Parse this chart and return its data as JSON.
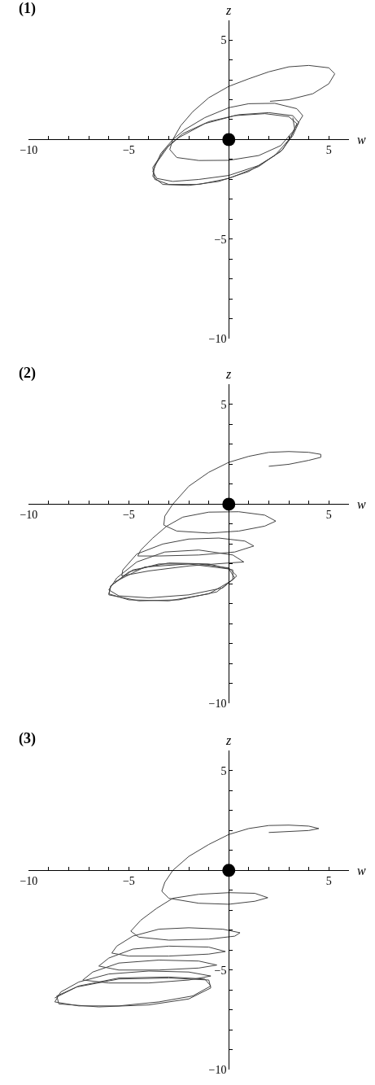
{
  "chart_data": [
    {
      "type": "line",
      "title": "(1)",
      "xlabel": "w",
      "ylabel": "z",
      "xlim": [
        -10,
        6
      ],
      "ylim": [
        -10,
        6
      ],
      "xticks": [
        -10,
        {
          "value": -9,
          "label": null
        },
        {
          "value": -8,
          "label": null
        },
        {
          "value": -7,
          "label": null
        },
        {
          "value": -6,
          "label": null
        },
        -5,
        {
          "value": -4,
          "label": null
        },
        {
          "value": -3,
          "label": null
        },
        {
          "value": -2,
          "label": null
        },
        {
          "value": -1,
          "label": null
        },
        {
          "value": 1,
          "label": null
        },
        {
          "value": 2,
          "label": null
        },
        {
          "value": 3,
          "label": null
        },
        {
          "value": 4,
          "label": null
        },
        5
      ],
      "yticks": [
        -10,
        {
          "value": -9,
          "label": null
        },
        {
          "value": -8,
          "label": null
        },
        {
          "value": -7,
          "label": null
        },
        {
          "value": -6,
          "label": null
        },
        -5,
        {
          "value": -4,
          "label": null
        },
        {
          "value": -3,
          "label": null
        },
        {
          "value": -2,
          "label": null
        },
        {
          "value": -1,
          "label": null
        },
        {
          "value": 1,
          "label": null
        },
        {
          "value": 2,
          "label": null
        },
        {
          "value": 3,
          "label": null
        },
        {
          "value": 4,
          "label": null
        },
        5
      ],
      "series": [
        {
          "color": "#444444",
          "x": [
            2.06,
            3.0,
            4.2,
            5.0,
            5.3,
            5.0,
            4.0,
            3.0,
            2.0,
            1.0,
            0,
            -1.0,
            -1.8,
            -2.4,
            -2.8,
            -2.95,
            -2.6,
            -1.5,
            0,
            1.5,
            2.6,
            3.2,
            3.7,
            3.4,
            2.3,
            1.0,
            0,
            -1.2,
            -2.2,
            -2.8,
            -3.4,
            -3.8,
            -3.6,
            -2.8,
            -1.5,
            0,
            1.5,
            2.6,
            3.2,
            3.5,
            3.2,
            2.0,
            0.5,
            -1.0,
            -2.3,
            -3.0,
            -3.7,
            -3.8,
            -3.3,
            -2.0,
            -0.5,
            1.0,
            2.3,
            3.1,
            3.4,
            3.0,
            1.8,
            0.3,
            -1.2,
            -2.5,
            -3.2,
            -3.8,
            -3.7,
            -3.0,
            -1.5,
            0,
            1.5,
            2.7,
            3.3,
            3.2
          ],
          "values": [
            1.92,
            2.0,
            2.3,
            2.8,
            3.3,
            3.6,
            3.72,
            3.65,
            3.4,
            3.05,
            2.67,
            2.1,
            1.4,
            0.7,
            0,
            -0.5,
            -0.9,
            -1.05,
            -1.04,
            -0.8,
            -0.3,
            0.4,
            1.2,
            1.55,
            1.82,
            1.8,
            1.6,
            1.1,
            0.5,
            0,
            -0.7,
            -1.6,
            -1.95,
            -2.1,
            -2.0,
            -1.8,
            -1.3,
            -0.6,
            0.2,
            0.85,
            1.2,
            1.35,
            1.25,
            0.9,
            0.3,
            -0.3,
            -1.3,
            -1.85,
            -2.25,
            -2.3,
            -2.1,
            -1.6,
            -0.8,
            0.1,
            0.8,
            1.15,
            1.3,
            1.2,
            0.8,
            0.1,
            -0.5,
            -1.4,
            -2.0,
            -2.25,
            -2.25,
            -1.95,
            -1.35,
            -0.5,
            0.5,
            1.1
          ]
        },
        {
          "type": "scatter",
          "color": "#000000",
          "marker": "circle",
          "x": [
            0
          ],
          "values": [
            0
          ]
        }
      ]
    },
    {
      "type": "line",
      "title": "(2)",
      "xlabel": "w",
      "ylabel": "z",
      "xlim": [
        -10,
        6
      ],
      "ylim": [
        -10,
        6
      ],
      "xticks": [
        -10,
        {
          "value": -9,
          "label": null
        },
        {
          "value": -8,
          "label": null
        },
        {
          "value": -7,
          "label": null
        },
        {
          "value": -6,
          "label": null
        },
        -5,
        {
          "value": -4,
          "label": null
        },
        {
          "value": -3,
          "label": null
        },
        {
          "value": -2,
          "label": null
        },
        {
          "value": -1,
          "label": null
        },
        {
          "value": 1,
          "label": null
        },
        {
          "value": 2,
          "label": null
        },
        {
          "value": 3,
          "label": null
        },
        {
          "value": 4,
          "label": null
        },
        5
      ],
      "yticks": [
        -10,
        {
          "value": -9,
          "label": null
        },
        {
          "value": -8,
          "label": null
        },
        {
          "value": -7,
          "label": null
        },
        {
          "value": -6,
          "label": null
        },
        {
          "value": -5,
          "label": null
        },
        {
          "value": -4,
          "label": null
        },
        {
          "value": -3,
          "label": null
        },
        {
          "value": -2,
          "label": null
        },
        {
          "value": -1,
          "label": null
        },
        {
          "value": 1,
          "label": null
        },
        {
          "value": 2,
          "label": null
        },
        {
          "value": 3,
          "label": null
        },
        {
          "value": 4,
          "label": null
        },
        5
      ],
      "series": [
        {
          "color": "#444444",
          "x": [
            2.0,
            3.0,
            4.0,
            4.6,
            4.6,
            4.0,
            3.0,
            2.0,
            1.0,
            0,
            -1.0,
            -2.0,
            -2.8,
            -3.2,
            -3.25,
            -2.6,
            -1.0,
            0.5,
            1.8,
            2.35,
            1.8,
            0.5,
            -1.0,
            -2.3,
            -3.1,
            -3.8,
            -4.4,
            -4.55,
            -3.5,
            -1.5,
            0.3,
            1.25,
            0.8,
            -0.5,
            -2.0,
            -3.3,
            -4.6,
            -5.3,
            -5.35,
            -4.0,
            -2.0,
            0,
            0.75,
            0.2,
            -1.5,
            -3.2,
            -4.6,
            -5.6,
            -6.0,
            -5.5,
            -4.0,
            -2.0,
            -0.3,
            0.4,
            0,
            -1.5,
            -3.5,
            -5.0,
            -5.9,
            -6.0,
            -5.0,
            -3.0,
            -1.0,
            0.2,
            0.2,
            -1.0,
            -3.0,
            -4.8,
            -5.9,
            -6.0,
            -4.5,
            -2.5,
            -0.6,
            0.3,
            0,
            -2.0,
            -4.2,
            -5.7
          ],
          "values": [
            1.9,
            2.0,
            2.2,
            2.35,
            2.5,
            2.6,
            2.64,
            2.6,
            2.4,
            2.1,
            1.6,
            0.9,
            0,
            -0.6,
            -1.05,
            -1.35,
            -1.45,
            -1.35,
            -1.1,
            -0.85,
            -0.55,
            -0.38,
            -0.4,
            -0.65,
            -1.1,
            -1.7,
            -2.3,
            -2.6,
            -2.6,
            -2.55,
            -2.4,
            -2.1,
            -1.85,
            -1.7,
            -1.75,
            -2.0,
            -2.5,
            -3.3,
            -3.6,
            -3.35,
            -3.1,
            -2.95,
            -2.9,
            -2.55,
            -2.3,
            -2.4,
            -2.9,
            -3.7,
            -4.3,
            -4.6,
            -4.7,
            -4.55,
            -4.2,
            -3.6,
            -3.2,
            -3.0,
            -3.0,
            -3.4,
            -4.1,
            -4.5,
            -4.8,
            -4.85,
            -4.5,
            -3.8,
            -3.3,
            -3.0,
            -2.95,
            -3.3,
            -4.1,
            -4.55,
            -4.85,
            -4.8,
            -4.4,
            -3.7,
            -3.25,
            -3.0,
            -3.15,
            -3.9
          ]
        },
        {
          "type": "scatter",
          "color": "#000000",
          "marker": "circle",
          "x": [
            0
          ],
          "values": [
            0
          ]
        }
      ]
    },
    {
      "type": "line",
      "title": "(3)",
      "xlabel": "w",
      "ylabel": "z",
      "xlim": [
        -10,
        6
      ],
      "ylim": [
        -10,
        6
      ],
      "xticks": [
        -10,
        {
          "value": -9,
          "label": null
        },
        {
          "value": -8,
          "label": null
        },
        {
          "value": -7,
          "label": null
        },
        {
          "value": -6,
          "label": null
        },
        -5,
        {
          "value": -4,
          "label": null
        },
        {
          "value": -3,
          "label": null
        },
        {
          "value": -2,
          "label": null
        },
        {
          "value": -1,
          "label": null
        },
        {
          "value": 1,
          "label": null
        },
        {
          "value": 2,
          "label": null
        },
        {
          "value": 3,
          "label": null
        },
        {
          "value": 4,
          "label": null
        },
        5
      ],
      "yticks": [
        -10,
        {
          "value": -9,
          "label": null
        },
        {
          "value": -8,
          "label": null
        },
        {
          "value": -7,
          "label": null
        },
        {
          "value": -6,
          "label": null
        },
        -5,
        {
          "value": -4,
          "label": null
        },
        {
          "value": -3,
          "label": null
        },
        {
          "value": -2,
          "label": null
        },
        {
          "value": -1,
          "label": null
        },
        {
          "value": 1,
          "label": null
        },
        {
          "value": 2,
          "label": null
        },
        {
          "value": 3,
          "label": null
        },
        {
          "value": 4,
          "label": null
        },
        5
      ],
      "series": [
        {
          "color": "#444444",
          "x": [
            2.0,
            3.0,
            4.0,
            4.5,
            4.0,
            3.0,
            2.0,
            1.0,
            0,
            -1.0,
            -2.0,
            -2.8,
            -3.2,
            -3.35,
            -3.0,
            -1.5,
            0,
            1.3,
            1.95,
            1.3,
            0,
            -1.5,
            -2.8,
            -3.6,
            -4.4,
            -4.9,
            -4.5,
            -3.0,
            -1.0,
            0.3,
            0.56,
            -0.3,
            -2.0,
            -3.5,
            -4.8,
            -5.6,
            -5.85,
            -5.0,
            -3.0,
            -1.0,
            -0.17,
            -1.0,
            -3.0,
            -4.8,
            -6.0,
            -6.5,
            -5.5,
            -3.5,
            -1.5,
            -0.6,
            -1.5,
            -3.5,
            -5.5,
            -6.8,
            -7.3,
            -6.0,
            -4.0,
            -2.0,
            -0.9,
            -2.0,
            -4.0,
            -6.0,
            -7.5,
            -8.4,
            -8.7,
            -7.5,
            -5.5,
            -3.5,
            -1.8,
            -0.9,
            -1.2,
            -3.0,
            -5.5,
            -7.5,
            -8.6,
            -8.5,
            -6.5,
            -4.0,
            -2.0,
            -0.9,
            -1.0,
            -3.0,
            -5.5,
            -7.6,
            -8.7
          ],
          "values": [
            1.9,
            1.95,
            2.0,
            2.1,
            2.22,
            2.27,
            2.25,
            2.1,
            1.8,
            1.3,
            0.7,
            0,
            -0.6,
            -1.05,
            -1.4,
            -1.65,
            -1.7,
            -1.55,
            -1.37,
            -1.15,
            -1.12,
            -1.2,
            -1.4,
            -1.9,
            -2.5,
            -3.05,
            -3.35,
            -3.5,
            -3.45,
            -3.3,
            -3.13,
            -2.95,
            -2.88,
            -2.95,
            -3.3,
            -3.8,
            -4.15,
            -4.3,
            -4.3,
            -4.2,
            -4.07,
            -3.85,
            -3.8,
            -3.95,
            -4.4,
            -4.8,
            -5.0,
            -5.0,
            -4.9,
            -4.75,
            -4.55,
            -4.5,
            -4.65,
            -5.1,
            -5.5,
            -5.65,
            -5.65,
            -5.5,
            -5.3,
            -5.1,
            -5.05,
            -5.2,
            -5.6,
            -6.1,
            -6.6,
            -6.8,
            -6.8,
            -6.6,
            -6.3,
            -5.8,
            -5.45,
            -5.35,
            -5.4,
            -5.8,
            -6.3,
            -6.7,
            -6.85,
            -6.75,
            -6.45,
            -5.9,
            -5.5,
            -5.4,
            -5.45,
            -5.85,
            -6.4
          ]
        },
        {
          "type": "scatter",
          "color": "#000000",
          "marker": "circle",
          "x": [
            0
          ],
          "values": [
            0
          ]
        }
      ]
    }
  ]
}
